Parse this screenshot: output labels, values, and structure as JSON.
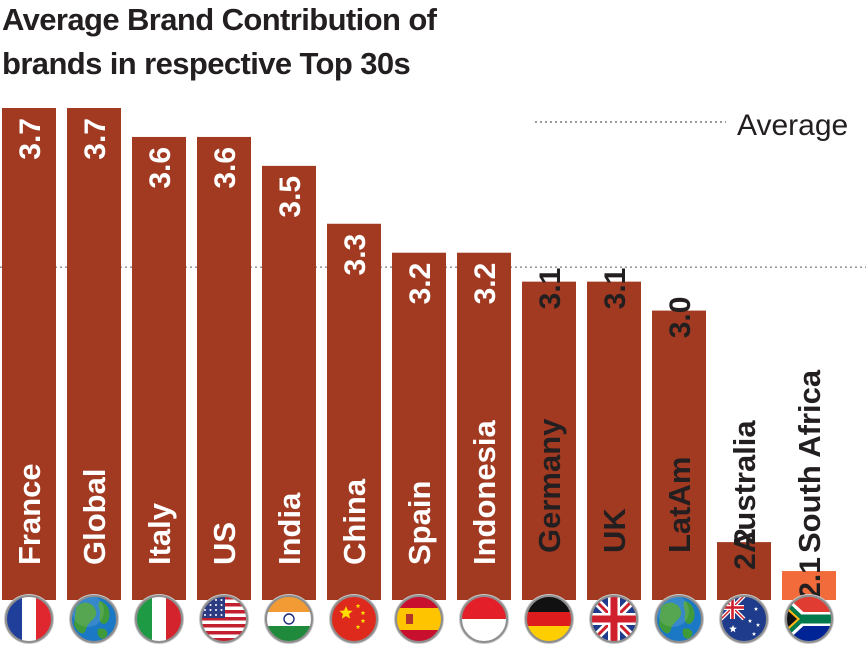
{
  "chart_data": {
    "type": "bar",
    "title": "Average Brand Contribution of brands in respective Top 30s",
    "title_lines": [
      "Average Brand Contribution of",
      "brands in respective Top 30s"
    ],
    "categories": [
      "France",
      "Global",
      "Italy",
      "US",
      "India",
      "China",
      "Spain",
      "Indonesia",
      "Germany",
      "UK",
      "LatAm",
      "Australia",
      "South Africa"
    ],
    "values": [
      3.7,
      3.7,
      3.6,
      3.6,
      3.5,
      3.3,
      3.2,
      3.2,
      3.1,
      3.1,
      3.0,
      2.2,
      2.1
    ],
    "value_labels": [
      "3.7",
      "3.7",
      "3.6",
      "3.6",
      "3.5",
      "3.3",
      "3.2",
      "3.2",
      "3.1",
      "3.1",
      "3.0",
      "2.2",
      "2.1"
    ],
    "flags": [
      "france-flag",
      "globe",
      "italy-flag",
      "us-flag",
      "india-flag",
      "china-flag",
      "spain-flag",
      "indonesia-flag",
      "germany-flag",
      "uk-flag",
      "globe",
      "australia-flag",
      "south-africa-flag"
    ],
    "average": 3.15,
    "legend": {
      "average_label": "Average"
    },
    "xlabel": "",
    "ylabel": "",
    "ylim": [
      2.0,
      3.7
    ],
    "colors": {
      "bar": "#a23a22",
      "bar_highlight": "#f26b3a",
      "text_on_bar": "#ffffff",
      "text_dark": "#231f20",
      "average_line": "#9a9a9a"
    }
  }
}
